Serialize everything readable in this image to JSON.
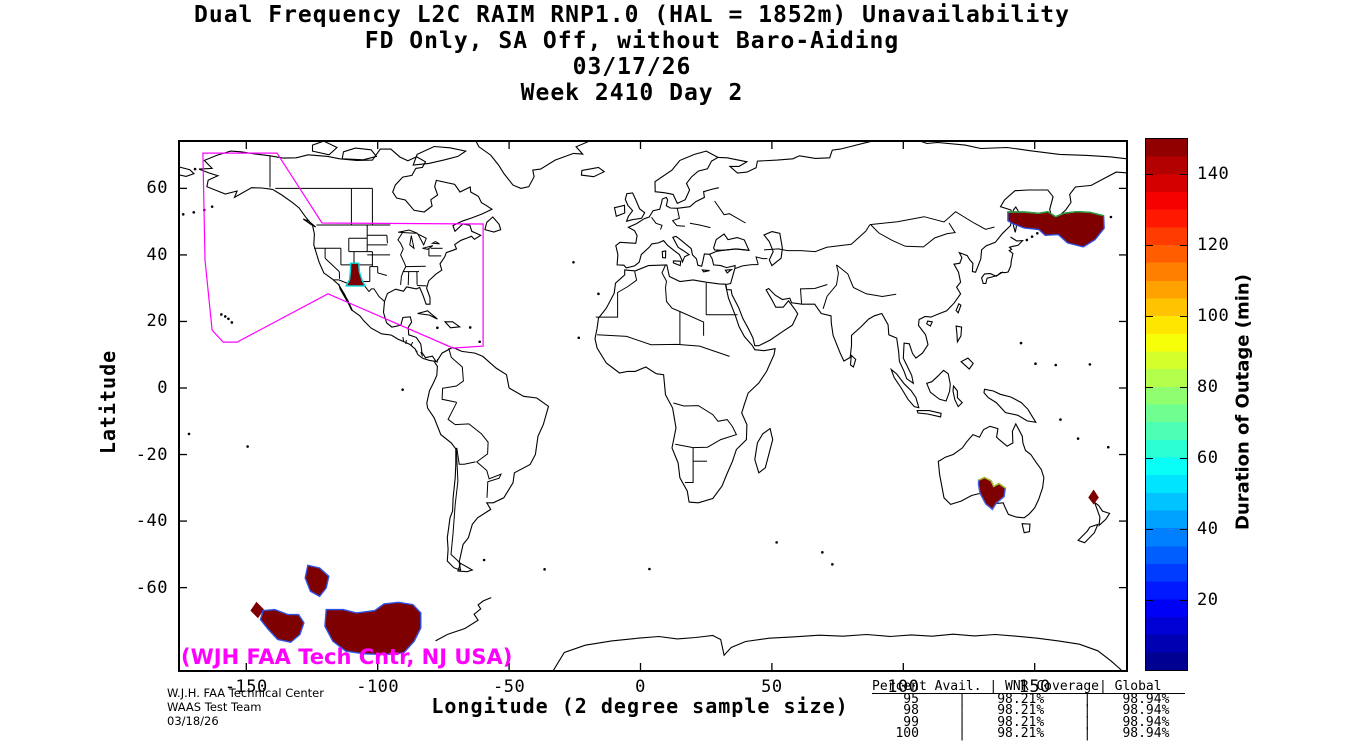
{
  "title": {
    "line1": "Dual Frequency L2C RAIM RNP1.0 (HAL = 1852m) Unavailability",
    "line2": "FD Only, SA Off, without Baro-Aiding",
    "line3": "03/17/26",
    "line4": "Week 2410 Day 2"
  },
  "annotation": {
    "text": "(WJH FAA Tech Cntr, NJ USA)",
    "color": "#ff00ff"
  },
  "footer": {
    "line1": "W.J.H. FAA Technical Center",
    "line2": "WAAS Test Team",
    "line3": "03/18/26"
  },
  "stats_table": {
    "header": "Percent Avail. | WNR Coverage| Global   ",
    "columns": [
      "Percent Avail.",
      "WNR Coverage",
      "Global"
    ],
    "rows": [
      [
        "95",
        "98.21%",
        "98.94%"
      ],
      [
        "98",
        "98.21%",
        "98.94%"
      ],
      [
        "99",
        "98.21%",
        "98.94%"
      ],
      [
        "100",
        "98.21%",
        "98.94%"
      ]
    ]
  },
  "chart_data": {
    "type": "heatmap",
    "title": "Dual Frequency L2C RAIM RNP1.0 (HAL = 1852m) Unavailability",
    "subtitle": "FD Only, SA Off, without Baro-Aiding",
    "date": "03/17/26",
    "gps_week": "Week 2410 Day 2",
    "xlabel": "Longitude (2 degree sample size)",
    "ylabel": "Latitude",
    "x_ticks": [
      -150,
      -100,
      -50,
      0,
      50,
      100,
      150
    ],
    "y_ticks": [
      60,
      40,
      20,
      0,
      -20,
      -40,
      -60
    ],
    "x_range": [
      -176,
      185.5
    ],
    "y_range": [
      -85.4,
      74.6
    ],
    "grid": false,
    "colorbar": {
      "label": "Duration of Outage (min)",
      "ticks": [
        20,
        40,
        60,
        80,
        100,
        120,
        140
      ],
      "range": [
        0,
        150
      ],
      "colormap": "jet",
      "position": "right"
    },
    "colors": {
      "coastline": "#000000",
      "outage_fill": "#7f0000",
      "waas_boundary": "#ff00ff",
      "background": "#ffffff"
    },
    "waas_boundary": [
      [
        -166.5,
        70.6
      ],
      [
        -138.3,
        70.6
      ],
      [
        -121.2,
        49.6
      ],
      [
        -59.9,
        49.3
      ],
      [
        -59.9,
        12.6
      ],
      [
        -71.3,
        12.0
      ],
      [
        -118.9,
        28.3
      ],
      [
        -153.5,
        13.8
      ],
      [
        -158.8,
        13.8
      ],
      [
        -163.0,
        17.4
      ],
      [
        -165.7,
        38.5
      ]
    ],
    "outage_regions": [
      {
        "name": "new-mexico-bell",
        "approx_duration_min": 150,
        "edge_color": "#00d8d8",
        "polygon": [
          [
            -110.3,
            37.5
          ],
          [
            -107.2,
            37.5
          ],
          [
            -107.0,
            35.0
          ],
          [
            -105.9,
            32.3
          ],
          [
            -104.8,
            30.7
          ],
          [
            -112.0,
            30.7
          ],
          [
            -110.7,
            32.6
          ],
          [
            -110.4,
            35.2
          ]
        ]
      },
      {
        "name": "northwest-pacific",
        "approx_duration_min": 150,
        "edge_color": "#2d4fe0",
        "top_edge": [
          [
            139.8,
            52.9
          ],
          [
            146.0,
            52.9
          ],
          [
            151.5,
            52.5
          ],
          [
            155.0,
            53.0
          ],
          [
            158.0,
            51.5
          ],
          [
            161.0,
            52.5
          ],
          [
            166.0,
            53.0
          ],
          [
            171.0,
            52.8
          ],
          [
            176.2,
            51.8
          ]
        ],
        "top_edge_color": "#2fa12f",
        "polygon": [
          [
            139.8,
            50.3
          ],
          [
            139.8,
            52.9
          ],
          [
            146.0,
            52.9
          ],
          [
            151.5,
            52.5
          ],
          [
            155.0,
            53.0
          ],
          [
            158.0,
            51.5
          ],
          [
            161.0,
            52.5
          ],
          [
            166.0,
            53.0
          ],
          [
            171.0,
            52.8
          ],
          [
            176.2,
            51.8
          ],
          [
            176.4,
            48.0
          ],
          [
            173.0,
            44.6
          ],
          [
            168.5,
            42.4
          ],
          [
            162.5,
            43.6
          ],
          [
            159.0,
            46.1
          ],
          [
            154.0,
            45.9
          ],
          [
            151.6,
            47.6
          ],
          [
            146.0,
            48.1
          ],
          [
            141.6,
            49.4
          ]
        ]
      },
      {
        "name": "south-australia",
        "approx_duration_min": 150,
        "edge_color": "#3c64e6",
        "top_edge": [
          [
            128.6,
            -27.7
          ],
          [
            130.9,
            -26.9
          ],
          [
            133.4,
            -27.9
          ],
          [
            134.4,
            -29.6
          ],
          [
            136.4,
            -28.7
          ],
          [
            138.8,
            -30.1
          ]
        ],
        "top_edge_color": "#a8c41e",
        "polygon": [
          [
            128.6,
            -27.7
          ],
          [
            130.9,
            -26.9
          ],
          [
            133.4,
            -27.9
          ],
          [
            134.4,
            -29.6
          ],
          [
            136.4,
            -28.7
          ],
          [
            138.8,
            -30.1
          ],
          [
            138.4,
            -32.6
          ],
          [
            135.4,
            -34.6
          ],
          [
            133.9,
            -36.5
          ],
          [
            131.4,
            -34.9
          ],
          [
            129.2,
            -31.6
          ],
          [
            128.6,
            -29.1
          ]
        ]
      },
      {
        "name": "tasman-diamond",
        "approx_duration_min": 150,
        "edge_color": "#7f0000",
        "polygon": [
          [
            172.4,
            -30.9
          ],
          [
            174.1,
            -32.9
          ],
          [
            172.4,
            -34.7
          ],
          [
            170.7,
            -32.9
          ]
        ]
      },
      {
        "name": "south-pacific-round",
        "approx_duration_min": 150,
        "edge_color": "#2d55e8",
        "polygon": [
          [
            -126.6,
            -53.3
          ],
          [
            -122.1,
            -54.1
          ],
          [
            -118.6,
            -56.6
          ],
          [
            -119.6,
            -60.1
          ],
          [
            -122.1,
            -62.6
          ],
          [
            -125.6,
            -61.1
          ],
          [
            -127.6,
            -57.1
          ]
        ]
      },
      {
        "name": "south-pacific-diamond",
        "approx_duration_min": 150,
        "edge_color": "#7f0000",
        "polygon": [
          [
            -146.1,
            -64.6
          ],
          [
            -143.6,
            -66.6
          ],
          [
            -145.6,
            -68.9
          ],
          [
            -148.1,
            -66.9
          ]
        ]
      },
      {
        "name": "south-pacific-medium",
        "approx_duration_min": 150,
        "edge_color": "#2d55e8",
        "polygon": [
          [
            -143.6,
            -66.9
          ],
          [
            -139.1,
            -66.6
          ],
          [
            -134.1,
            -68.1
          ],
          [
            -130.1,
            -68.1
          ],
          [
            -128.1,
            -70.6
          ],
          [
            -129.6,
            -74.1
          ],
          [
            -133.1,
            -76.4
          ],
          [
            -138.1,
            -75.6
          ],
          [
            -141.6,
            -72.6
          ],
          [
            -144.6,
            -69.6
          ]
        ]
      },
      {
        "name": "south-pacific-large",
        "approx_duration_min": 150,
        "edge_color": "#2d55e8",
        "polygon": [
          [
            -119.6,
            -66.6
          ],
          [
            -113.1,
            -66.6
          ],
          [
            -108.1,
            -67.6
          ],
          [
            -101.1,
            -66.9
          ],
          [
            -97.6,
            -64.9
          ],
          [
            -92.1,
            -64.4
          ],
          [
            -86.6,
            -65.1
          ],
          [
            -83.6,
            -67.6
          ],
          [
            -83.6,
            -72.1
          ],
          [
            -86.1,
            -76.1
          ],
          [
            -90.1,
            -79.6
          ],
          [
            -97.1,
            -80.1
          ],
          [
            -105.1,
            -79.9
          ],
          [
            -112.1,
            -79.1
          ],
          [
            -117.1,
            -76.1
          ],
          [
            -120.1,
            -71.6
          ]
        ]
      }
    ]
  }
}
